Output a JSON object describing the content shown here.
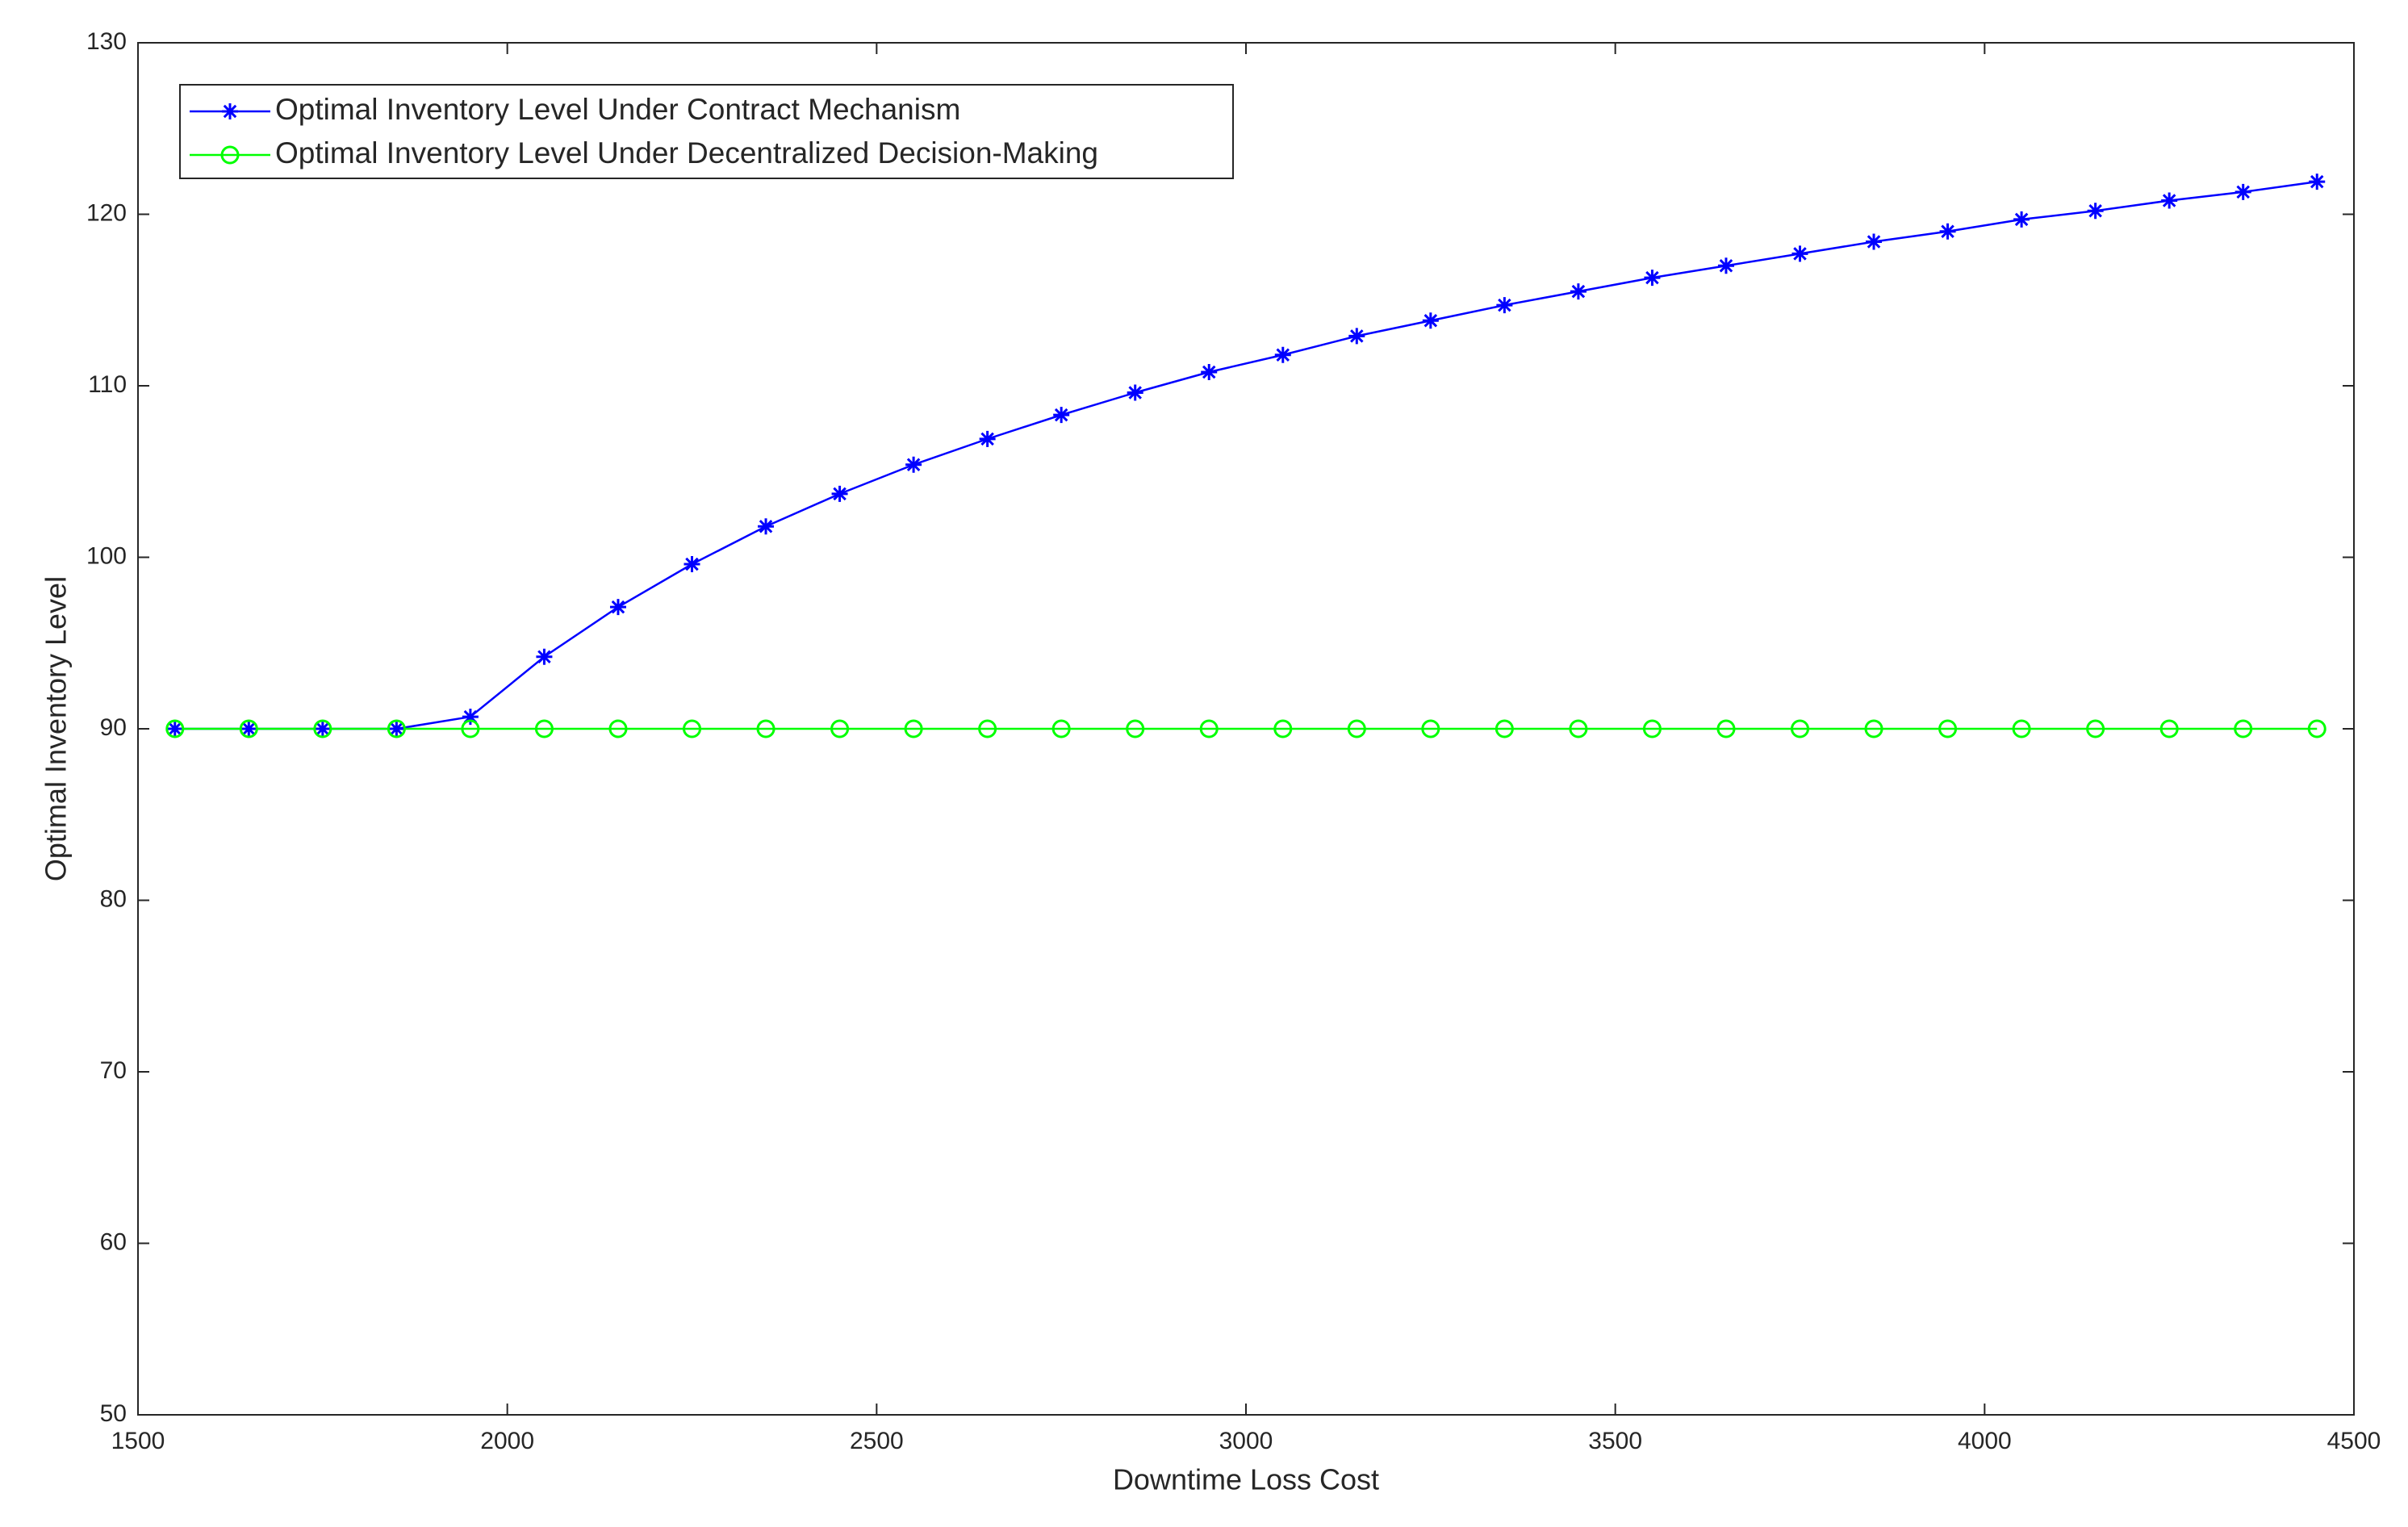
{
  "chart_data": {
    "type": "line",
    "xlabel": "Downtime Loss Cost",
    "ylabel": "Optimal Inventory Level",
    "x": [
      1550,
      1650,
      1750,
      1850,
      1950,
      2050,
      2150,
      2250,
      2350,
      2450,
      2550,
      2650,
      2750,
      2850,
      2950,
      3050,
      3150,
      3250,
      3350,
      3450,
      3550,
      3650,
      3750,
      3850,
      3950,
      4050,
      4150,
      4250,
      4350,
      4450
    ],
    "series": [
      {
        "name": "Optimal Inventory Level Under Contract Mechanism",
        "color": "#0000ff",
        "marker": "star",
        "values": [
          90,
          90,
          90,
          90,
          90.7,
          94.2,
          97.1,
          99.6,
          101.8,
          103.7,
          105.4,
          106.9,
          108.3,
          109.6,
          110.8,
          111.8,
          112.9,
          113.8,
          114.7,
          115.5,
          116.3,
          117.0,
          117.7,
          118.4,
          119.0,
          119.7,
          120.2,
          120.8,
          121.3,
          121.9
        ]
      },
      {
        "name": "Optimal Inventory Level Under Decentralized Decision-Making",
        "color": "#00ff00",
        "marker": "circle",
        "values": [
          90,
          90,
          90,
          90,
          90,
          90,
          90,
          90,
          90,
          90,
          90,
          90,
          90,
          90,
          90,
          90,
          90,
          90,
          90,
          90,
          90,
          90,
          90,
          90,
          90,
          90,
          90,
          90,
          90,
          90
        ]
      }
    ],
    "xlim": [
      1500,
      4500
    ],
    "xticks": [
      1500,
      2000,
      2500,
      3000,
      3500,
      4000,
      4500
    ],
    "ylim": [
      50,
      130
    ],
    "yticks": [
      50,
      60,
      70,
      80,
      90,
      100,
      110,
      120,
      130
    ],
    "grid": false,
    "legend": "top-left"
  }
}
